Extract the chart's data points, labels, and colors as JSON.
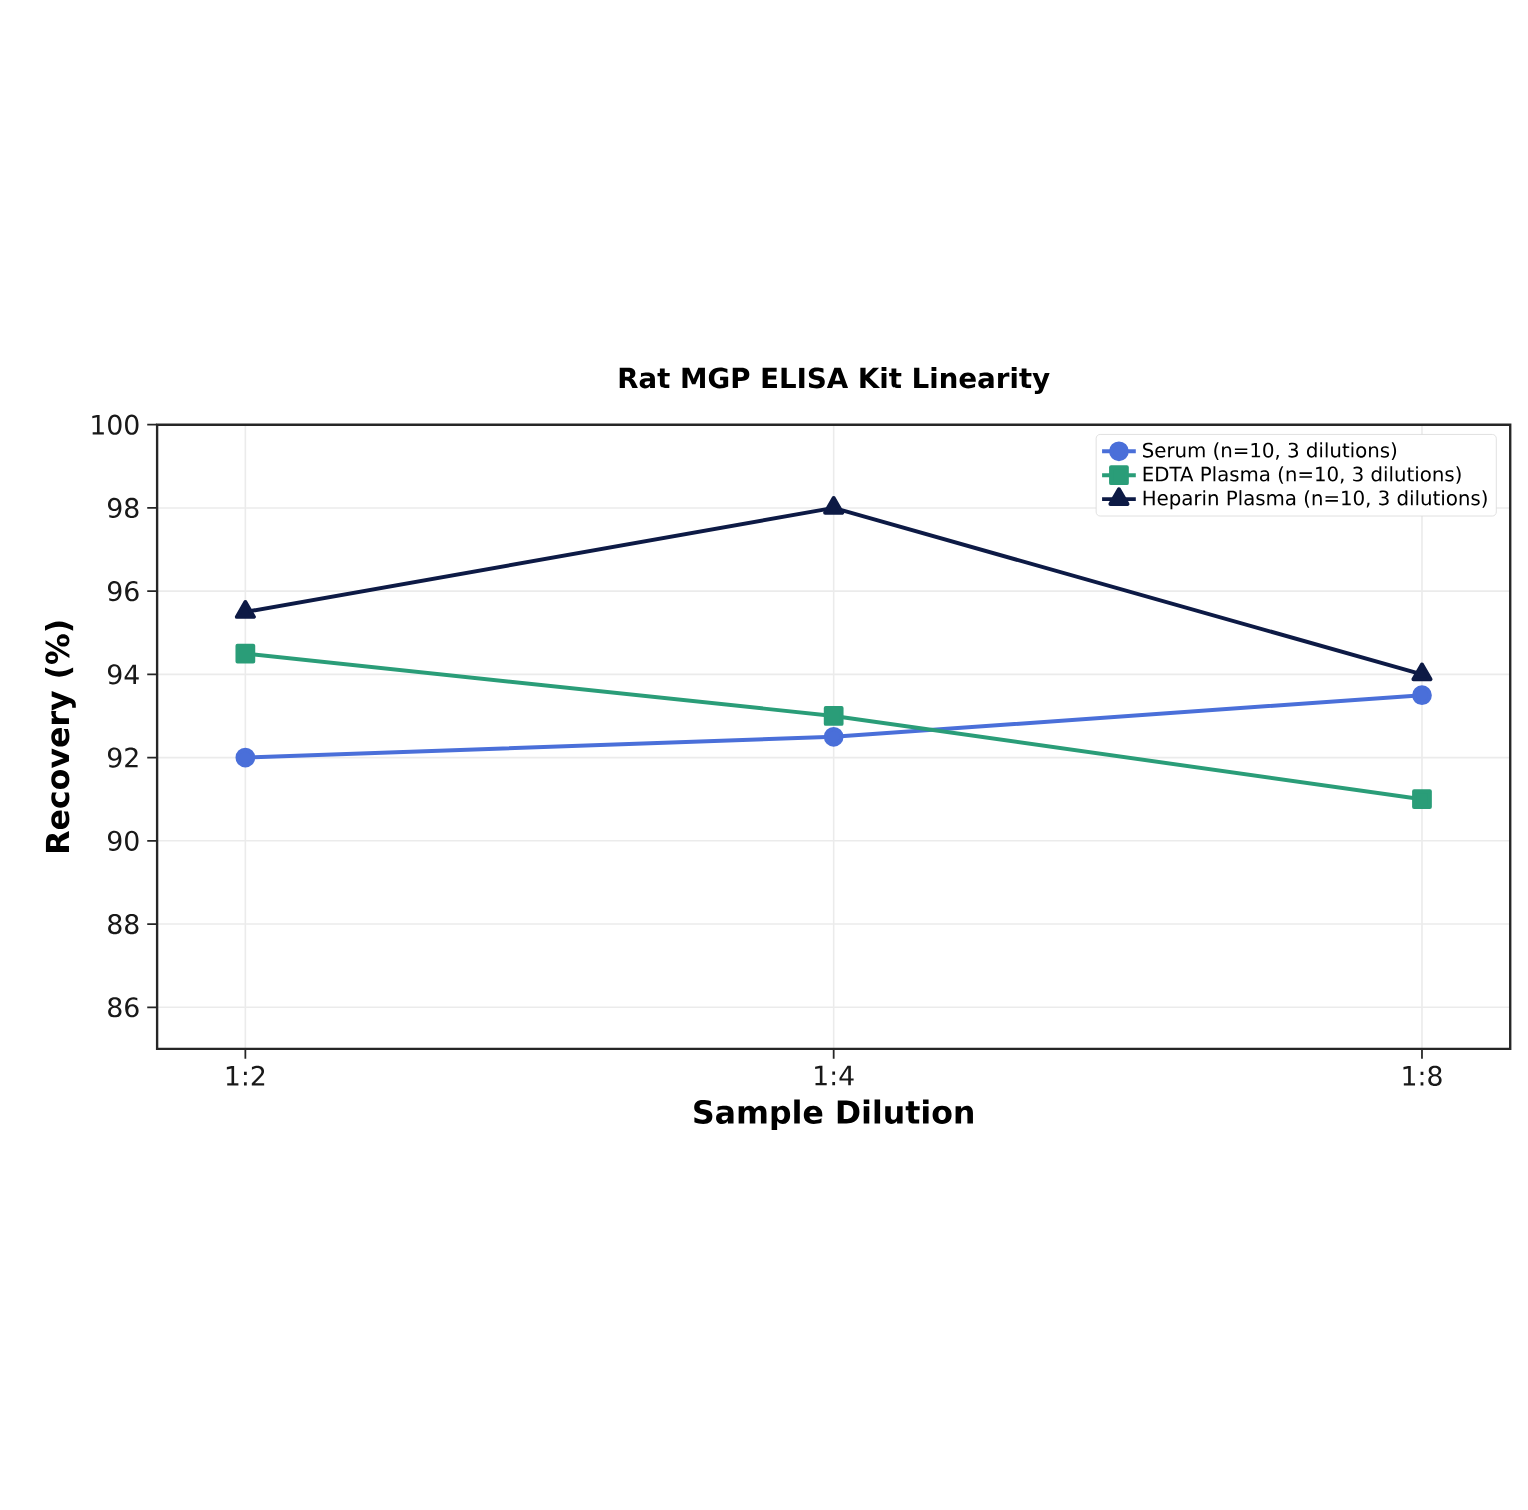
{
  "chart_data": {
    "type": "line",
    "title": "Rat MGP ELISA Kit Linearity",
    "xlabel": "Sample Dilution",
    "ylabel": "Recovery (%)",
    "categories": [
      "1:2",
      "1:4",
      "1:8"
    ],
    "series": [
      {
        "name": "Serum (n=10, 3 dilutions)",
        "color": "#4a6fd9",
        "marker": "circle",
        "values": [
          92,
          92.5,
          93.5
        ]
      },
      {
        "name": "EDTA Plasma (n=10, 3 dilutions)",
        "color": "#2a9d78",
        "marker": "square",
        "values": [
          94.5,
          93,
          91
        ]
      },
      {
        "name": "Heparin Plasma (n=10, 3 dilutions)",
        "color": "#0d1a45",
        "marker": "triangle",
        "values": [
          95.5,
          98,
          94
        ]
      }
    ],
    "ylim": [
      85,
      100
    ],
    "yticks": [
      86,
      88,
      90,
      92,
      94,
      96,
      98,
      100
    ],
    "grid": true,
    "legend": "top right",
    "line_style": "solid"
  }
}
